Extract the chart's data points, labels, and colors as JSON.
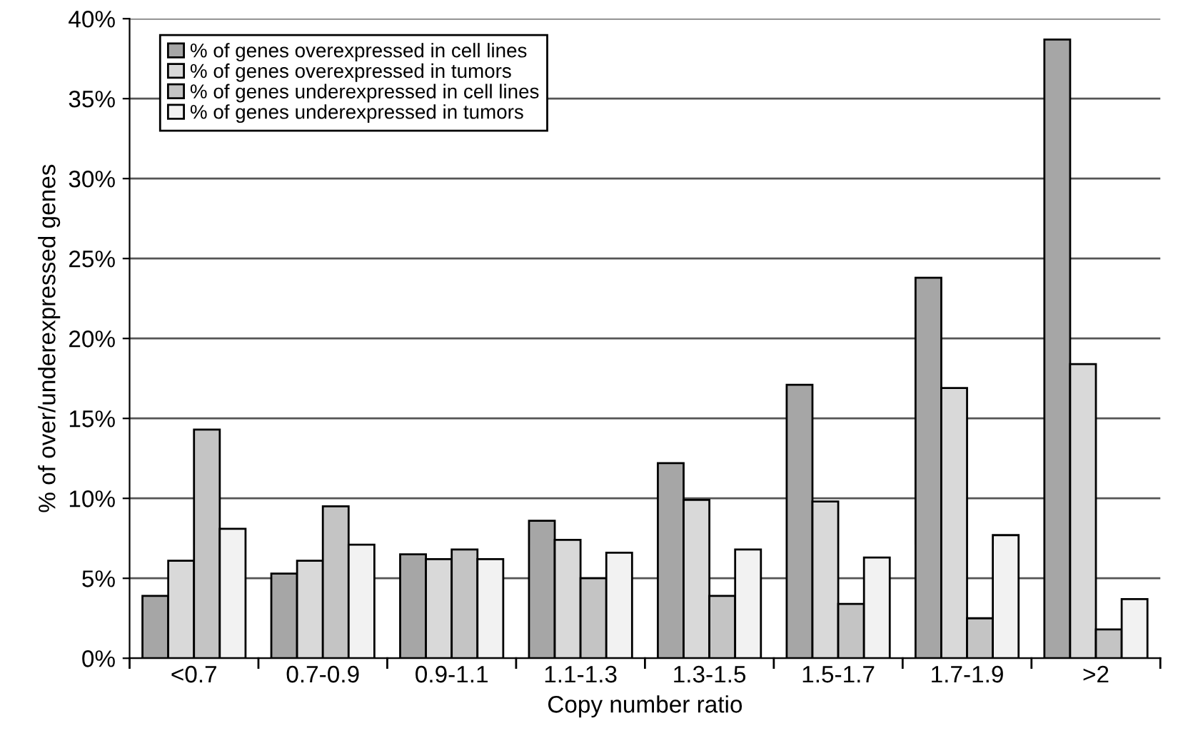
{
  "chart_data": {
    "type": "bar",
    "xlabel": "Copy number ratio",
    "ylabel": "% of over/underexpressed genes",
    "categories": [
      "<0.7",
      "0.7-0.9",
      "0.9-1.1",
      "1.1-1.3",
      "1.3-1.5",
      "1.5-1.7",
      "1.7-1.9",
      ">2"
    ],
    "series": [
      {
        "name": "% of genes overexpressed in cell lines",
        "color": "#a6a6a6",
        "values": [
          3.9,
          5.3,
          6.5,
          8.6,
          12.2,
          17.1,
          23.8,
          38.7
        ]
      },
      {
        "name": "% of genes overexpressed in tumors",
        "color": "#d9d9d9",
        "values": [
          6.1,
          6.1,
          6.2,
          7.4,
          9.9,
          9.8,
          16.9,
          18.4
        ]
      },
      {
        "name": "% of genes underexpressed in cell lines",
        "color": "#c4c4c4",
        "values": [
          14.3,
          9.5,
          6.8,
          5.0,
          3.9,
          3.4,
          2.5,
          1.8
        ]
      },
      {
        "name": "% of genes underexpressed in tumors",
        "color": "#f2f2f2",
        "values": [
          8.1,
          7.1,
          6.2,
          6.6,
          6.8,
          6.3,
          7.7,
          3.7
        ]
      }
    ],
    "ylim": [
      0,
      40
    ],
    "yticks": [
      {
        "value": 0,
        "label": "0%"
      },
      {
        "value": 5,
        "label": "5%"
      },
      {
        "value": 10,
        "label": "10%"
      },
      {
        "value": 15,
        "label": "15%"
      },
      {
        "value": 20,
        "label": "20%"
      },
      {
        "value": 25,
        "label": "25%"
      },
      {
        "value": 30,
        "label": "30%"
      },
      {
        "value": 35,
        "label": "35%"
      },
      {
        "value": 40,
        "label": "40%"
      }
    ],
    "grid": "y",
    "legend": "top left"
  }
}
